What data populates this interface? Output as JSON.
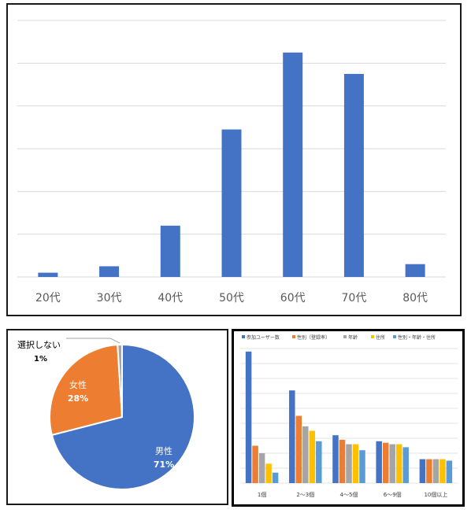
{
  "colors": {
    "blue": "#4472C4",
    "orange": "#ED7D31",
    "gray": "#A5A5A5",
    "yellow": "#FFC000",
    "lightblue": "#5B9BD5",
    "grid": "#d9d9d9",
    "tick_text": "#595959"
  },
  "chart_data": [
    {
      "type": "bar",
      "categories": [
        "20代",
        "30代",
        "40代",
        "50代",
        "60代",
        "70代",
        "80代"
      ],
      "values": [
        1,
        2.5,
        12,
        34.5,
        52.5,
        47.5,
        3
      ],
      "ylim": [
        0,
        60
      ],
      "grid": true,
      "gridline_count": 6
    },
    {
      "type": "pie",
      "labels": [
        "男性",
        "女性",
        "選択しない"
      ],
      "values": [
        71,
        28,
        1
      ],
      "value_labels": [
        "71%",
        "28%",
        "1%"
      ],
      "colors": [
        "#4472C4",
        "#ED7D31",
        "#A5A5A5"
      ]
    },
    {
      "type": "bar",
      "categories": [
        "1個",
        "2～3個",
        "4～5個",
        "6～9個",
        "10個以上"
      ],
      "series": [
        {
          "name": "参加ユーザー数",
          "values": [
            78,
            52,
            22,
            18,
            6
          ]
        },
        {
          "name": "性別（登録率）",
          "values": [
            15,
            35,
            19,
            17,
            6
          ]
        },
        {
          "name": "年齢",
          "values": [
            10,
            28,
            16,
            16,
            6
          ]
        },
        {
          "name": "住所",
          "values": [
            3,
            25,
            16,
            16,
            6
          ]
        },
        {
          "name": "性別・年齢・住所",
          "values": [
            -3,
            18,
            12,
            14,
            5
          ]
        }
      ],
      "ylim": [
        -10,
        80
      ],
      "grid": true,
      "legend": "top"
    }
  ]
}
